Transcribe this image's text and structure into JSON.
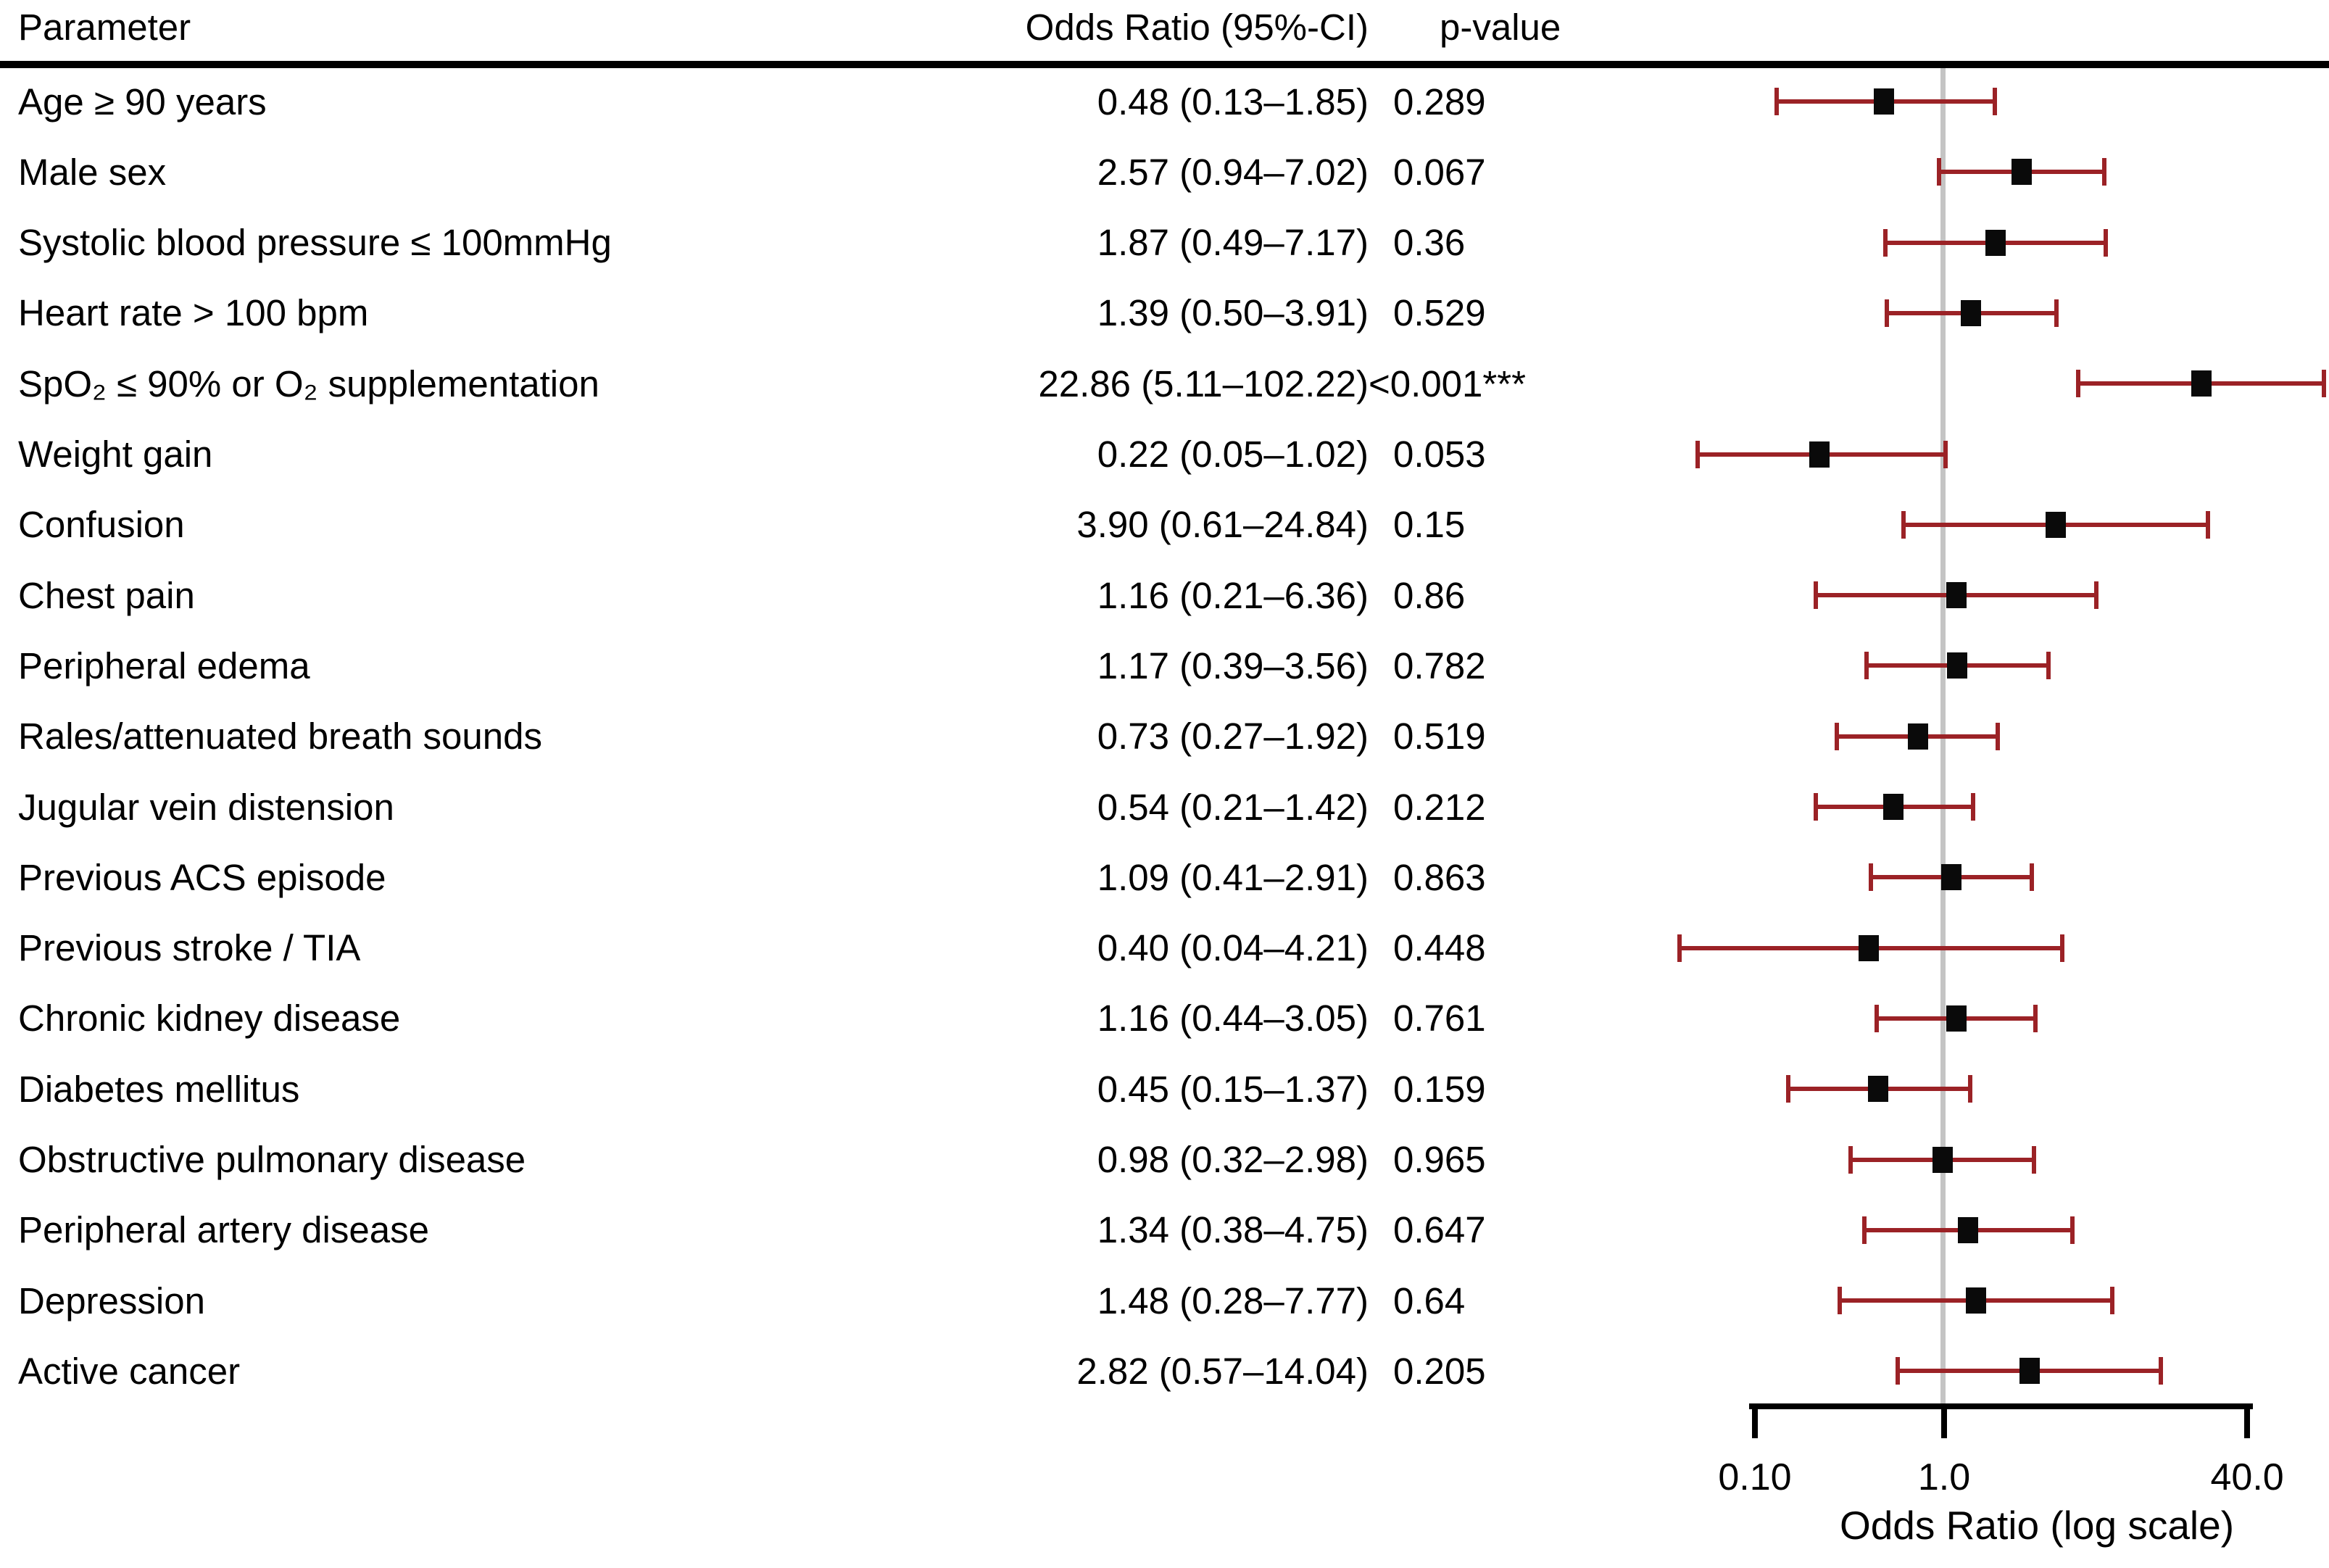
{
  "table": {
    "headers": {
      "parameter": "Parameter",
      "or_ci": "Odds Ratio (95%-CI)",
      "p": "p-value"
    },
    "rows": [
      {
        "parameter": "Age ≥ 90 years",
        "or_ci": "0.48 (0.13–1.85)",
        "p": "0.289",
        "or": 0.48,
        "lo": 0.13,
        "hi": 1.85
      },
      {
        "parameter": "Male sex",
        "or_ci": "2.57 (0.94–7.02)",
        "p": "0.067",
        "or": 2.57,
        "lo": 0.94,
        "hi": 7.02
      },
      {
        "parameter": "Systolic blood pressure ≤ 100mmHg",
        "or_ci": "1.87 (0.49–7.17)",
        "p": "0.36",
        "or": 1.87,
        "lo": 0.49,
        "hi": 7.17
      },
      {
        "parameter": "Heart rate > 100 bpm",
        "or_ci": "1.39 (0.50–3.91)",
        "p": "0.529",
        "or": 1.39,
        "lo": 0.5,
        "hi": 3.91
      },
      {
        "parameter": "SpO₂ ≤ 90% or O₂ supplementation",
        "or_ci": "22.86 (5.11–102.22)",
        "p": "<0.001***",
        "or": 22.86,
        "lo": 5.11,
        "hi": 102.22
      },
      {
        "parameter": "Weight gain",
        "or_ci": "0.22 (0.05–1.02)",
        "p": "0.053",
        "or": 0.22,
        "lo": 0.05,
        "hi": 1.02
      },
      {
        "parameter": "Confusion",
        "or_ci": "3.90 (0.61–24.84)",
        "p": "0.15",
        "or": 3.9,
        "lo": 0.61,
        "hi": 24.84
      },
      {
        "parameter": "Chest pain",
        "or_ci": "1.16 (0.21–6.36)",
        "p": "0.86",
        "or": 1.16,
        "lo": 0.21,
        "hi": 6.36
      },
      {
        "parameter": "Peripheral edema",
        "or_ci": "1.17 (0.39–3.56)",
        "p": "0.782",
        "or": 1.17,
        "lo": 0.39,
        "hi": 3.56
      },
      {
        "parameter": "Rales/attenuated breath sounds",
        "or_ci": "0.73 (0.27–1.92)",
        "p": "0.519",
        "or": 0.73,
        "lo": 0.27,
        "hi": 1.92
      },
      {
        "parameter": "Jugular vein distension",
        "or_ci": "0.54 (0.21–1.42)",
        "p": "0.212",
        "or": 0.54,
        "lo": 0.21,
        "hi": 1.42
      },
      {
        "parameter": "Previous ACS episode",
        "or_ci": "1.09 (0.41–2.91)",
        "p": "0.863",
        "or": 1.09,
        "lo": 0.41,
        "hi": 2.91
      },
      {
        "parameter": "Previous stroke / TIA",
        "or_ci": "0.40 (0.04–4.21)",
        "p": "0.448",
        "or": 0.4,
        "lo": 0.04,
        "hi": 4.21
      },
      {
        "parameter": "Chronic kidney disease",
        "or_ci": "1.16 (0.44–3.05)",
        "p": "0.761",
        "or": 1.16,
        "lo": 0.44,
        "hi": 3.05
      },
      {
        "parameter": "Diabetes mellitus",
        "or_ci": "0.45 (0.15–1.37)",
        "p": "0.159",
        "or": 0.45,
        "lo": 0.15,
        "hi": 1.37
      },
      {
        "parameter": "Obstructive pulmonary disease",
        "or_ci": "0.98 (0.32–2.98)",
        "p": "0.965",
        "or": 0.98,
        "lo": 0.32,
        "hi": 2.98
      },
      {
        "parameter": "Peripheral artery disease",
        "or_ci": "1.34 (0.38–4.75)",
        "p": "0.647",
        "or": 1.34,
        "lo": 0.38,
        "hi": 4.75
      },
      {
        "parameter": "Depression",
        "or_ci": "1.48 (0.28–7.77)",
        "p": "0.64",
        "or": 1.48,
        "lo": 0.28,
        "hi": 7.77
      },
      {
        "parameter": "Active cancer",
        "or_ci": "2.82 (0.57–14.04)",
        "p": "0.205",
        "or": 2.82,
        "lo": 0.57,
        "hi": 14.04
      }
    ]
  },
  "chart_data": {
    "type": "scatter",
    "variant": "forest-plot",
    "orientation": "horizontal",
    "x_scale": "log",
    "xlabel": "Odds Ratio (log scale)",
    "x_range": [
      0.1,
      40
    ],
    "x_tick_values": [
      0.1,
      1.0,
      40.0
    ],
    "x_tick_labels": [
      "0.10",
      "1.0",
      "40.0"
    ],
    "reference_line": 1.0,
    "grid": false,
    "legend": "none",
    "categories": [
      "Age ≥ 90 years",
      "Male sex",
      "Systolic blood pressure ≤ 100mmHg",
      "Heart rate > 100 bpm",
      "SpO₂ ≤ 90% or O₂ supplementation",
      "Weight gain",
      "Confusion",
      "Chest pain",
      "Peripheral edema",
      "Rales/attenuated breath sounds",
      "Jugular vein distension",
      "Previous ACS episode",
      "Previous stroke / TIA",
      "Chronic kidney disease",
      "Diabetes mellitus",
      "Obstructive pulmonary disease",
      "Peripheral artery disease",
      "Depression",
      "Active cancer"
    ],
    "series": [
      {
        "name": "Odds Ratio",
        "values": [
          0.48,
          2.57,
          1.87,
          1.39,
          22.86,
          0.22,
          3.9,
          1.16,
          1.17,
          0.73,
          0.54,
          1.09,
          0.4,
          1.16,
          0.45,
          0.98,
          1.34,
          1.48,
          2.82
        ]
      },
      {
        "name": "CI lower",
        "values": [
          0.13,
          0.94,
          0.49,
          0.5,
          5.11,
          0.05,
          0.61,
          0.21,
          0.39,
          0.27,
          0.21,
          0.41,
          0.04,
          0.44,
          0.15,
          0.32,
          0.38,
          0.28,
          0.57
        ]
      },
      {
        "name": "CI upper",
        "values": [
          1.85,
          7.02,
          7.17,
          3.91,
          102.22,
          1.02,
          24.84,
          6.36,
          3.56,
          1.92,
          1.42,
          2.91,
          4.21,
          3.05,
          1.37,
          2.98,
          4.75,
          7.77,
          14.04
        ]
      }
    ],
    "p_values": [
      "0.289",
      "0.067",
      "0.36",
      "0.529",
      "<0.001***",
      "0.053",
      "0.15",
      "0.86",
      "0.782",
      "0.519",
      "0.212",
      "0.863",
      "0.448",
      "0.761",
      "0.159",
      "0.965",
      "0.647",
      "0.64",
      "0.205"
    ]
  },
  "colors": {
    "error_bar": "#9B2226",
    "marker": "#0A0A0A",
    "reference_line": "#C4C4C4",
    "axis": "#000000",
    "text": "#000000",
    "background": "#FFFFFF"
  }
}
